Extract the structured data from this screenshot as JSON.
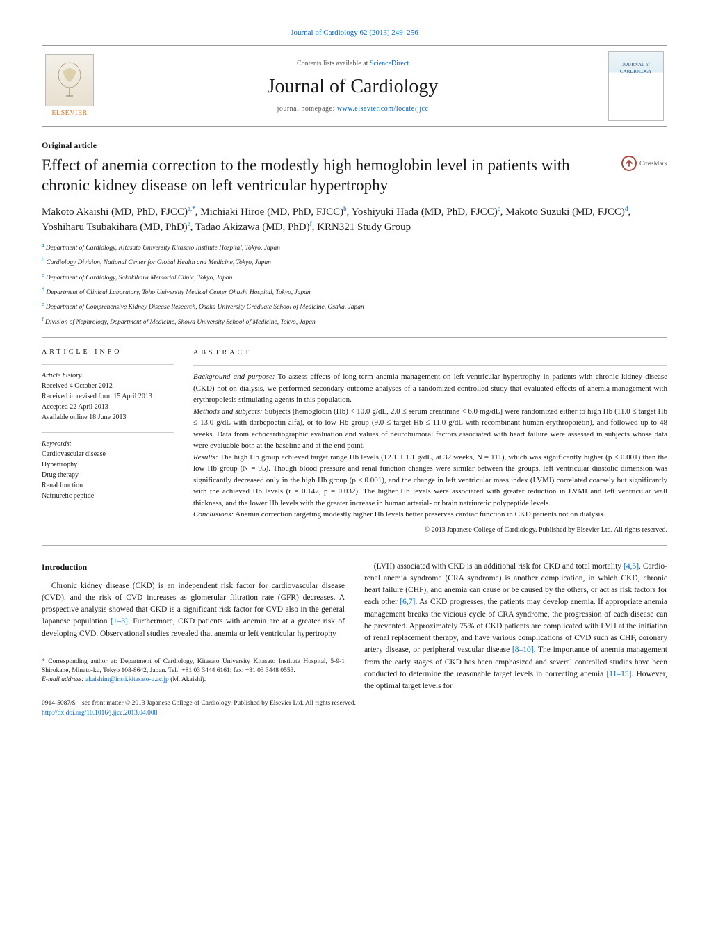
{
  "meta": {
    "journal_pageref": "Journal of Cardiology 62 (2013) 249–256",
    "contents_line_prefix": "Contents lists available at ",
    "contents_link_text": "ScienceDirect",
    "journal_name": "Journal of Cardiology",
    "homepage_prefix": "journal homepage: ",
    "homepage_url": "www.elsevier.com/locate/jjcc",
    "publisher_logo_label": "ELSEVIER",
    "cover_label_top": "JOURNAL of",
    "cover_label_bottom": "CARDIOLOGY",
    "crossmark_label": "CrossMark"
  },
  "article": {
    "type": "Original article",
    "title": "Effect of anemia correction to the modestly high hemoglobin level in patients with chronic kidney disease on left ventricular hypertrophy",
    "authors_html": "Makoto Akaishi (MD, PhD, FJCC)<sup>a,*</sup>, Michiaki Hiroe (MD, PhD, FJCC)<sup>b</sup>, Yoshiyuki Hada (MD, PhD, FJCC)<sup>c</sup>, Makoto Suzuki (MD, FJCC)<sup>d</sup>, Yoshiharu Tsubakihara (MD, PhD)<sup>e</sup>, Tadao Akizawa (MD, PhD)<sup>f</sup>, KRN321 Study Group",
    "affiliations": [
      {
        "sup": "a",
        "text": "Department of Cardiology, Kitasato University Kitasato Institute Hospital, Tokyo, Japan"
      },
      {
        "sup": "b",
        "text": "Cardiology Division, National Center for Global Health and Medicine, Tokyo, Japan"
      },
      {
        "sup": "c",
        "text": "Department of Cardiology, Sakakibara Memorial Clinic, Tokyo, Japan"
      },
      {
        "sup": "d",
        "text": "Department of Clinical Laboratory, Toho University Medical Center Ohashi Hospital, Tokyo, Japan"
      },
      {
        "sup": "e",
        "text": "Department of Comprehensive Kidney Disease Research, Osaka University Graduate School of Medicine, Osaka, Japan"
      },
      {
        "sup": "f",
        "text": "Division of Nephrology, Department of Medicine, Showa University School of Medicine, Tokyo, Japan"
      }
    ]
  },
  "article_info": {
    "heading": "ARTICLE INFO",
    "history_label": "Article history:",
    "history_lines": [
      "Received 4 October 2012",
      "Received in revised form 15 April 2013",
      "Accepted 22 April 2013",
      "Available online 18 June 2013"
    ],
    "keywords_label": "Keywords:",
    "keywords": [
      "Cardiovascular disease",
      "Hypertrophy",
      "Drug therapy",
      "Renal function",
      "Natriuretic peptide"
    ]
  },
  "abstract": {
    "heading": "ABSTRACT",
    "sections": [
      {
        "label": "Background and purpose:",
        "text": "To assess effects of long-term anemia management on left ventricular hypertrophy in patients with chronic kidney disease (CKD) not on dialysis, we performed secondary outcome analyses of a randomized controlled study that evaluated effects of anemia management with erythropoiesis stimulating agents in this population."
      },
      {
        "label": "Methods and subjects:",
        "text": "Subjects [hemoglobin (Hb) < 10.0 g/dL, 2.0 ≤ serum creatinine < 6.0 mg/dL] were randomized either to high Hb (11.0 ≤ target Hb ≤ 13.0 g/dL with darbepoetin alfa), or to low Hb group (9.0 ≤ target Hb ≤ 11.0 g/dL with recombinant human erythropoietin), and followed up to 48 weeks. Data from echocardiographic evaluation and values of neurohumoral factors associated with heart failure were assessed in subjects whose data were evaluable both at the baseline and at the end point."
      },
      {
        "label": "Results:",
        "text": "The high Hb group achieved target range Hb levels (12.1 ± 1.1 g/dL, at 32 weeks, N = 111), which was significantly higher (p < 0.001) than the low Hb group (N = 95). Though blood pressure and renal function changes were similar between the groups, left ventricular diastolic dimension was significantly decreased only in the high Hb group (p < 0.001), and the change in left ventricular mass index (LVMI) correlated coarsely but significantly with the achieved Hb levels (r = 0.147, p = 0.032). The higher Hb levels were associated with greater reduction in LVMI and left ventricular wall thickness, and the lower Hb levels with the greater increase in human arterial- or brain natriuretic polypeptide levels."
      },
      {
        "label": "Conclusions:",
        "text": "Anemia correction targeting modestly higher Hb levels better preserves cardiac function in CKD patients not on dialysis."
      }
    ],
    "copyright": "© 2013 Japanese College of Cardiology. Published by Elsevier Ltd. All rights reserved."
  },
  "body": {
    "intro_heading": "Introduction",
    "col1": "Chronic kidney disease (CKD) is an independent risk factor for cardiovascular disease (CVD), and the risk of CVD increases as glomerular filtration rate (GFR) decreases. A prospective analysis showed that CKD is a significant risk factor for CVD also in the general Japanese population [1–3]. Furthermore, CKD patients with anemia are at a greater risk of developing CVD. Observational studies revealed that anemia or left ventricular hypertrophy",
    "col2": "(LVH) associated with CKD is an additional risk for CKD and total mortality [4,5]. Cardio-renal anemia syndrome (CRA syndrome) is another complication, in which CKD, chronic heart failure (CHF), and anemia can cause or be caused by the others, or act as risk factors for each other [6,7]. As CKD progresses, the patients may develop anemia. If appropriate anemia management breaks the vicious cycle of CRA syndrome, the progression of each disease can be prevented. Approximately 75% of CKD patients are complicated with LVH at the initiation of renal replacement therapy, and have various complications of CVD such as CHF, coronary artery disease, or peripheral vascular disease [8–10]. The importance of anemia management from the early stages of CKD has been emphasized and several controlled studies have been conducted to determine the reasonable target levels in correcting anemia [11–15]. However, the optimal target levels for",
    "refs_col1": [
      "[1–3]"
    ],
    "refs_col2": [
      "[4,5]",
      "[6,7]",
      "[8–10]",
      "[11–15]"
    ]
  },
  "footnotes": {
    "corr_label": "* Corresponding author at:",
    "corr_text": "Department of Cardiology, Kitasato University Kitasato Institute Hospital, 5-9-1 Shirokane, Minato-ku, Tokyo 108-8642, Japan. Tel.: +81 03 3444 6161; fax: +81 03 3448 0553.",
    "email_label": "E-mail address:",
    "email": "akaishim@insti.kitasato-u.ac.jp",
    "email_author": "(M. Akaishi).",
    "front_matter": "0914-5087/$ – see front matter © 2013 Japanese College of Cardiology. Published by Elsevier Ltd. All rights reserved.",
    "doi": "http://dx.doi.org/10.1016/j.jjcc.2013.04.008"
  },
  "colors": {
    "link": "#0066cc",
    "elsevier_orange": "#e67817",
    "rule": "#999999",
    "text": "#1a1a1a",
    "crossmark_ring": "#b0443a"
  },
  "typography": {
    "body_font": "Georgia, 'Times New Roman', serif",
    "title_pt": 23,
    "journal_name_pt": 28,
    "body_pt": 11.5,
    "abstract_pt": 11,
    "small_pt": 10
  }
}
